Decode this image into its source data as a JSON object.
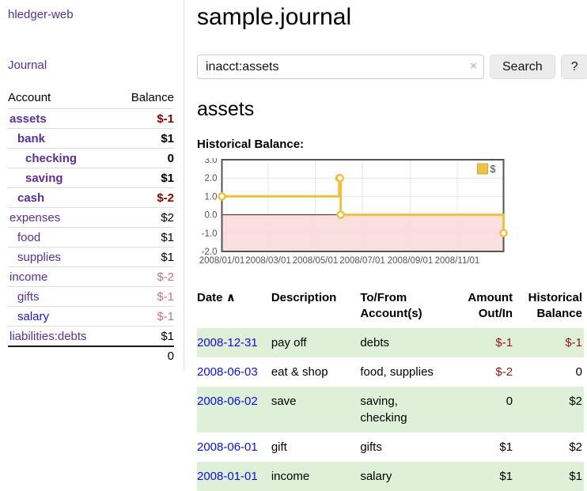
{
  "app": {
    "title": "hledger-web"
  },
  "sidebar": {
    "journal_link": "Journal",
    "accounts_table": {
      "headers": {
        "account": "Account",
        "balance": "Balance"
      },
      "rows": [
        {
          "name": "assets",
          "balance": "$-1",
          "level": 1,
          "bold": true,
          "balance_style": "neg-strong",
          "link_style": "purple"
        },
        {
          "name": "bank",
          "balance": "$1",
          "level": 2,
          "bold": true,
          "balance_style": "",
          "link_style": "purple"
        },
        {
          "name": "checking",
          "balance": "0",
          "level": 3,
          "bold": true,
          "balance_style": "",
          "link_style": "purple"
        },
        {
          "name": "saving",
          "balance": "$1",
          "level": 3,
          "bold": true,
          "balance_style": "",
          "link_style": "purple"
        },
        {
          "name": "cash",
          "balance": "$-2",
          "level": 2,
          "bold": true,
          "balance_style": "neg-strong",
          "link_style": "purple"
        },
        {
          "name": "expenses",
          "balance": "$2",
          "level": 1,
          "bold": false,
          "balance_style": "",
          "link_style": "purple"
        },
        {
          "name": "food",
          "balance": "$1",
          "level": 2,
          "bold": false,
          "balance_style": "",
          "link_style": "purple"
        },
        {
          "name": "supplies",
          "balance": "$1",
          "level": 2,
          "bold": false,
          "balance_style": "",
          "link_style": "purple"
        },
        {
          "name": "income",
          "balance": "$-2",
          "level": 1,
          "bold": false,
          "balance_style": "neg-light",
          "link_style": "purple"
        },
        {
          "name": "gifts",
          "balance": "$-1",
          "level": 2,
          "bold": false,
          "balance_style": "neg-light",
          "link_style": "purple"
        },
        {
          "name": "salary",
          "balance": "$-1",
          "level": 2,
          "bold": false,
          "balance_style": "neg-light",
          "link_style": "blue"
        },
        {
          "name": "liabilities:debts",
          "balance": "$1",
          "level": 1,
          "bold": false,
          "balance_style": "",
          "link_style": "purple"
        }
      ],
      "total": "0"
    }
  },
  "main": {
    "title": "sample.journal",
    "search": {
      "value": "inacct:assets",
      "clear_icon": "×",
      "button": "Search",
      "help_button": "?"
    },
    "account_heading": "assets",
    "chart_heading": "Historical Balance:"
  },
  "chart_data": {
    "type": "line",
    "title": "Historical Balance:",
    "series": [
      {
        "name": "$",
        "color": "#edc240",
        "points": [
          [
            "2008-01-01",
            1
          ],
          [
            "2008-06-01",
            2
          ],
          [
            "2008-06-02",
            2
          ],
          [
            "2008-06-03",
            0
          ],
          [
            "2008-12-31",
            -1
          ]
        ],
        "style": "step-after-with-markers"
      }
    ],
    "x_ticks": [
      "2008/01/01",
      "2008/03/01",
      "2008/05/01",
      "2008/07/01",
      "2008/09/01",
      "2008/11/01"
    ],
    "y_ticks": [
      3.0,
      2.0,
      1.0,
      0.0,
      -1.0,
      -2.0
    ],
    "ylim": [
      -2,
      3
    ],
    "xlim": [
      "2008-01-01",
      "2008-12-31"
    ],
    "legend_position": "top-right",
    "grid": true,
    "negative_region_fill": "#f9d9d9",
    "zero_line_color": "#8b0000",
    "border_color": "#545454"
  },
  "register_table": {
    "headers": [
      "Date",
      "Description",
      "To/From Account(s)",
      "Amount Out/In",
      "Historical Balance"
    ],
    "sort_icon": "∧",
    "rows": [
      {
        "date": "2008-12-31",
        "description": "pay off",
        "accounts": "debts",
        "amount": "$-1",
        "amount_neg": true,
        "balance": "$-1",
        "balance_neg": true
      },
      {
        "date": "2008-06-03",
        "description": "eat & shop",
        "accounts": "food, supplies",
        "amount": "$-2",
        "amount_neg": true,
        "balance": "0",
        "balance_neg": false
      },
      {
        "date": "2008-06-02",
        "description": "save",
        "accounts": "saving, checking",
        "amount": "0",
        "amount_neg": false,
        "balance": "$2",
        "balance_neg": false
      },
      {
        "date": "2008-06-01",
        "description": "gift",
        "accounts": "gifts",
        "amount": "$1",
        "amount_neg": false,
        "balance": "$2",
        "balance_neg": false
      },
      {
        "date": "2008-01-01",
        "description": "income",
        "accounts": "salary",
        "amount": "$1",
        "amount_neg": false,
        "balance": "$1",
        "balance_neg": false
      }
    ]
  },
  "colors": {
    "accent_purple": "#5b2f96",
    "link_blue": "#0f0fe0",
    "negative_strong": "#8b0000",
    "negative_light": "#c1787c",
    "table_row_green": "#dff0d8",
    "chart_line": "#edc240"
  }
}
